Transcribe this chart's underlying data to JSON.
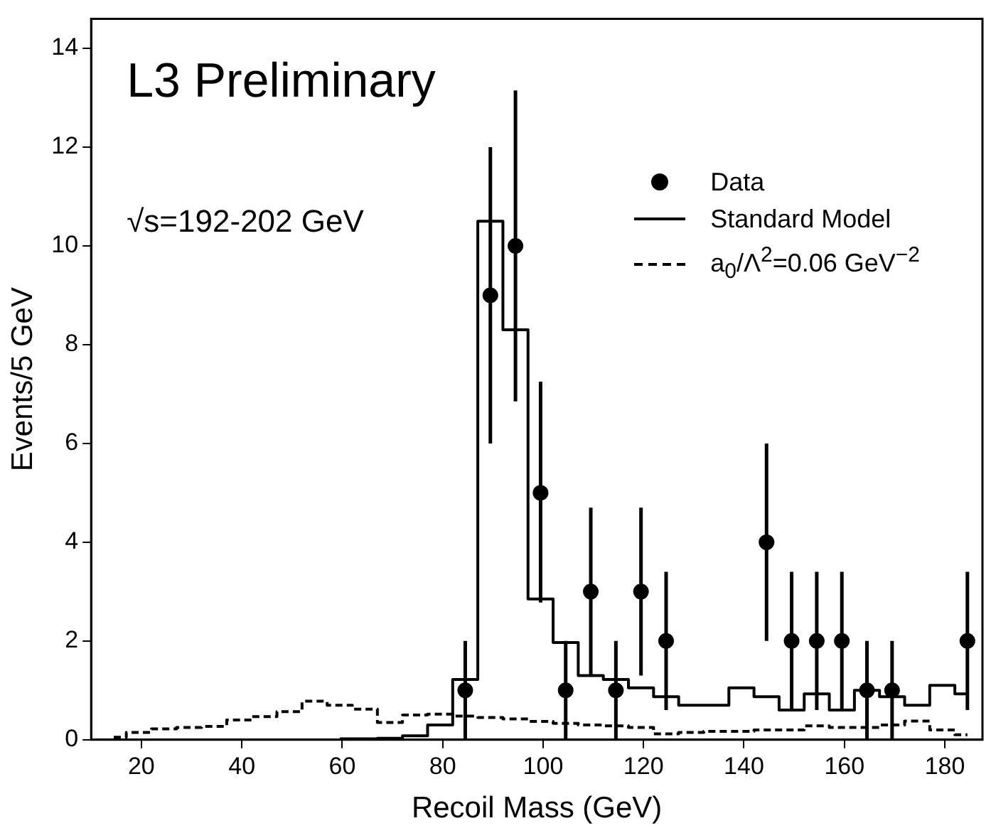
{
  "chart_data": {
    "type": "scatter",
    "xlabel": "Recoil Mass (GeV)",
    "ylabel": "Events/5 GeV",
    "annotations": [
      "L3 Preliminary",
      "√s=192-202 GeV"
    ],
    "xlim": [
      10,
      187.5
    ],
    "xticks": [
      20,
      40,
      60,
      80,
      100,
      120,
      140,
      160,
      180
    ],
    "ylim": [
      0,
      14.6
    ],
    "yticks": [
      0,
      2,
      4,
      6,
      8,
      10,
      12,
      14
    ],
    "grid": false,
    "legend": "top right",
    "series": [
      {
        "name": "Data",
        "marker": "circle",
        "color": "#000000",
        "x": [
          84.5,
          89.5,
          94.5,
          99.5,
          104.5,
          109.5,
          114.5,
          119.5,
          124.5,
          144.5,
          149.5,
          154.5,
          159.5,
          164.5,
          169.5,
          184.5
        ],
        "values": [
          1,
          9,
          10,
          5,
          1,
          3,
          1,
          3,
          2,
          4,
          2,
          2,
          2,
          1,
          1,
          2
        ],
        "errors": [
          [
            0,
            2
          ],
          [
            6,
            12
          ],
          [
            6.85,
            13.15
          ],
          [
            2.78,
            7.25
          ],
          [
            0,
            2
          ],
          [
            1.3,
            4.7
          ],
          [
            0,
            2
          ],
          [
            1.3,
            4.7
          ],
          [
            0.6,
            3.4
          ],
          [
            2,
            6
          ],
          [
            0.6,
            3.4
          ],
          [
            0.6,
            3.4
          ],
          [
            0.6,
            3.4
          ],
          [
            0,
            2
          ],
          [
            0,
            2
          ],
          [
            0.6,
            3.4
          ]
        ]
      },
      {
        "name": "Standard Model",
        "type": "step",
        "marker": "none",
        "line_style": "solid",
        "color": "#000000",
        "x": [
          59.5,
          64.5,
          69.5,
          74.5,
          79.5,
          84.5,
          89.5,
          94.5,
          99.5,
          104.5,
          109.5,
          114.5,
          119.5,
          124.5,
          129.5,
          134.5,
          139.5,
          144.5,
          149.5,
          154.5,
          159.5,
          164.5,
          169.5,
          174.5,
          179.5,
          184.5
        ],
        "values": [
          0.02,
          0.02,
          0.03,
          0.08,
          0.3,
          1.22,
          10.5,
          8.3,
          2.85,
          1.97,
          1.3,
          1.22,
          1.05,
          0.87,
          0.7,
          0.7,
          1.05,
          0.87,
          0.6,
          0.93,
          0.6,
          1.0,
          0.87,
          0.7,
          1.1,
          0.93
        ]
      },
      {
        "name": "a$_{0}$/Λ$^{2}$=0.06  GeV$^{−2}$",
        "type": "step",
        "marker": "none",
        "line_style": "dashed",
        "color": "#000000",
        "x": [
          14.5,
          19.5,
          24.5,
          29.5,
          34.5,
          39.5,
          44.5,
          49.5,
          54.5,
          59.5,
          64.5,
          69.5,
          74.5,
          79.5,
          84.5,
          89.5,
          94.5,
          99.5,
          104.5,
          109.5,
          114.5,
          119.5,
          124.5,
          129.5,
          134.5,
          139.5,
          144.5,
          149.5,
          154.5,
          159.5,
          164.5,
          169.5,
          174.5,
          179.5,
          184.5
        ],
        "values": [
          0.05,
          0.15,
          0.22,
          0.25,
          0.27,
          0.4,
          0.47,
          0.57,
          0.78,
          0.7,
          0.62,
          0.35,
          0.5,
          0.52,
          0.48,
          0.45,
          0.42,
          0.37,
          0.33,
          0.3,
          0.28,
          0.25,
          0.12,
          0.15,
          0.17,
          0.17,
          0.2,
          0.2,
          0.28,
          0.25,
          0.25,
          0.3,
          0.38,
          0.2,
          0.1
        ]
      }
    ]
  }
}
